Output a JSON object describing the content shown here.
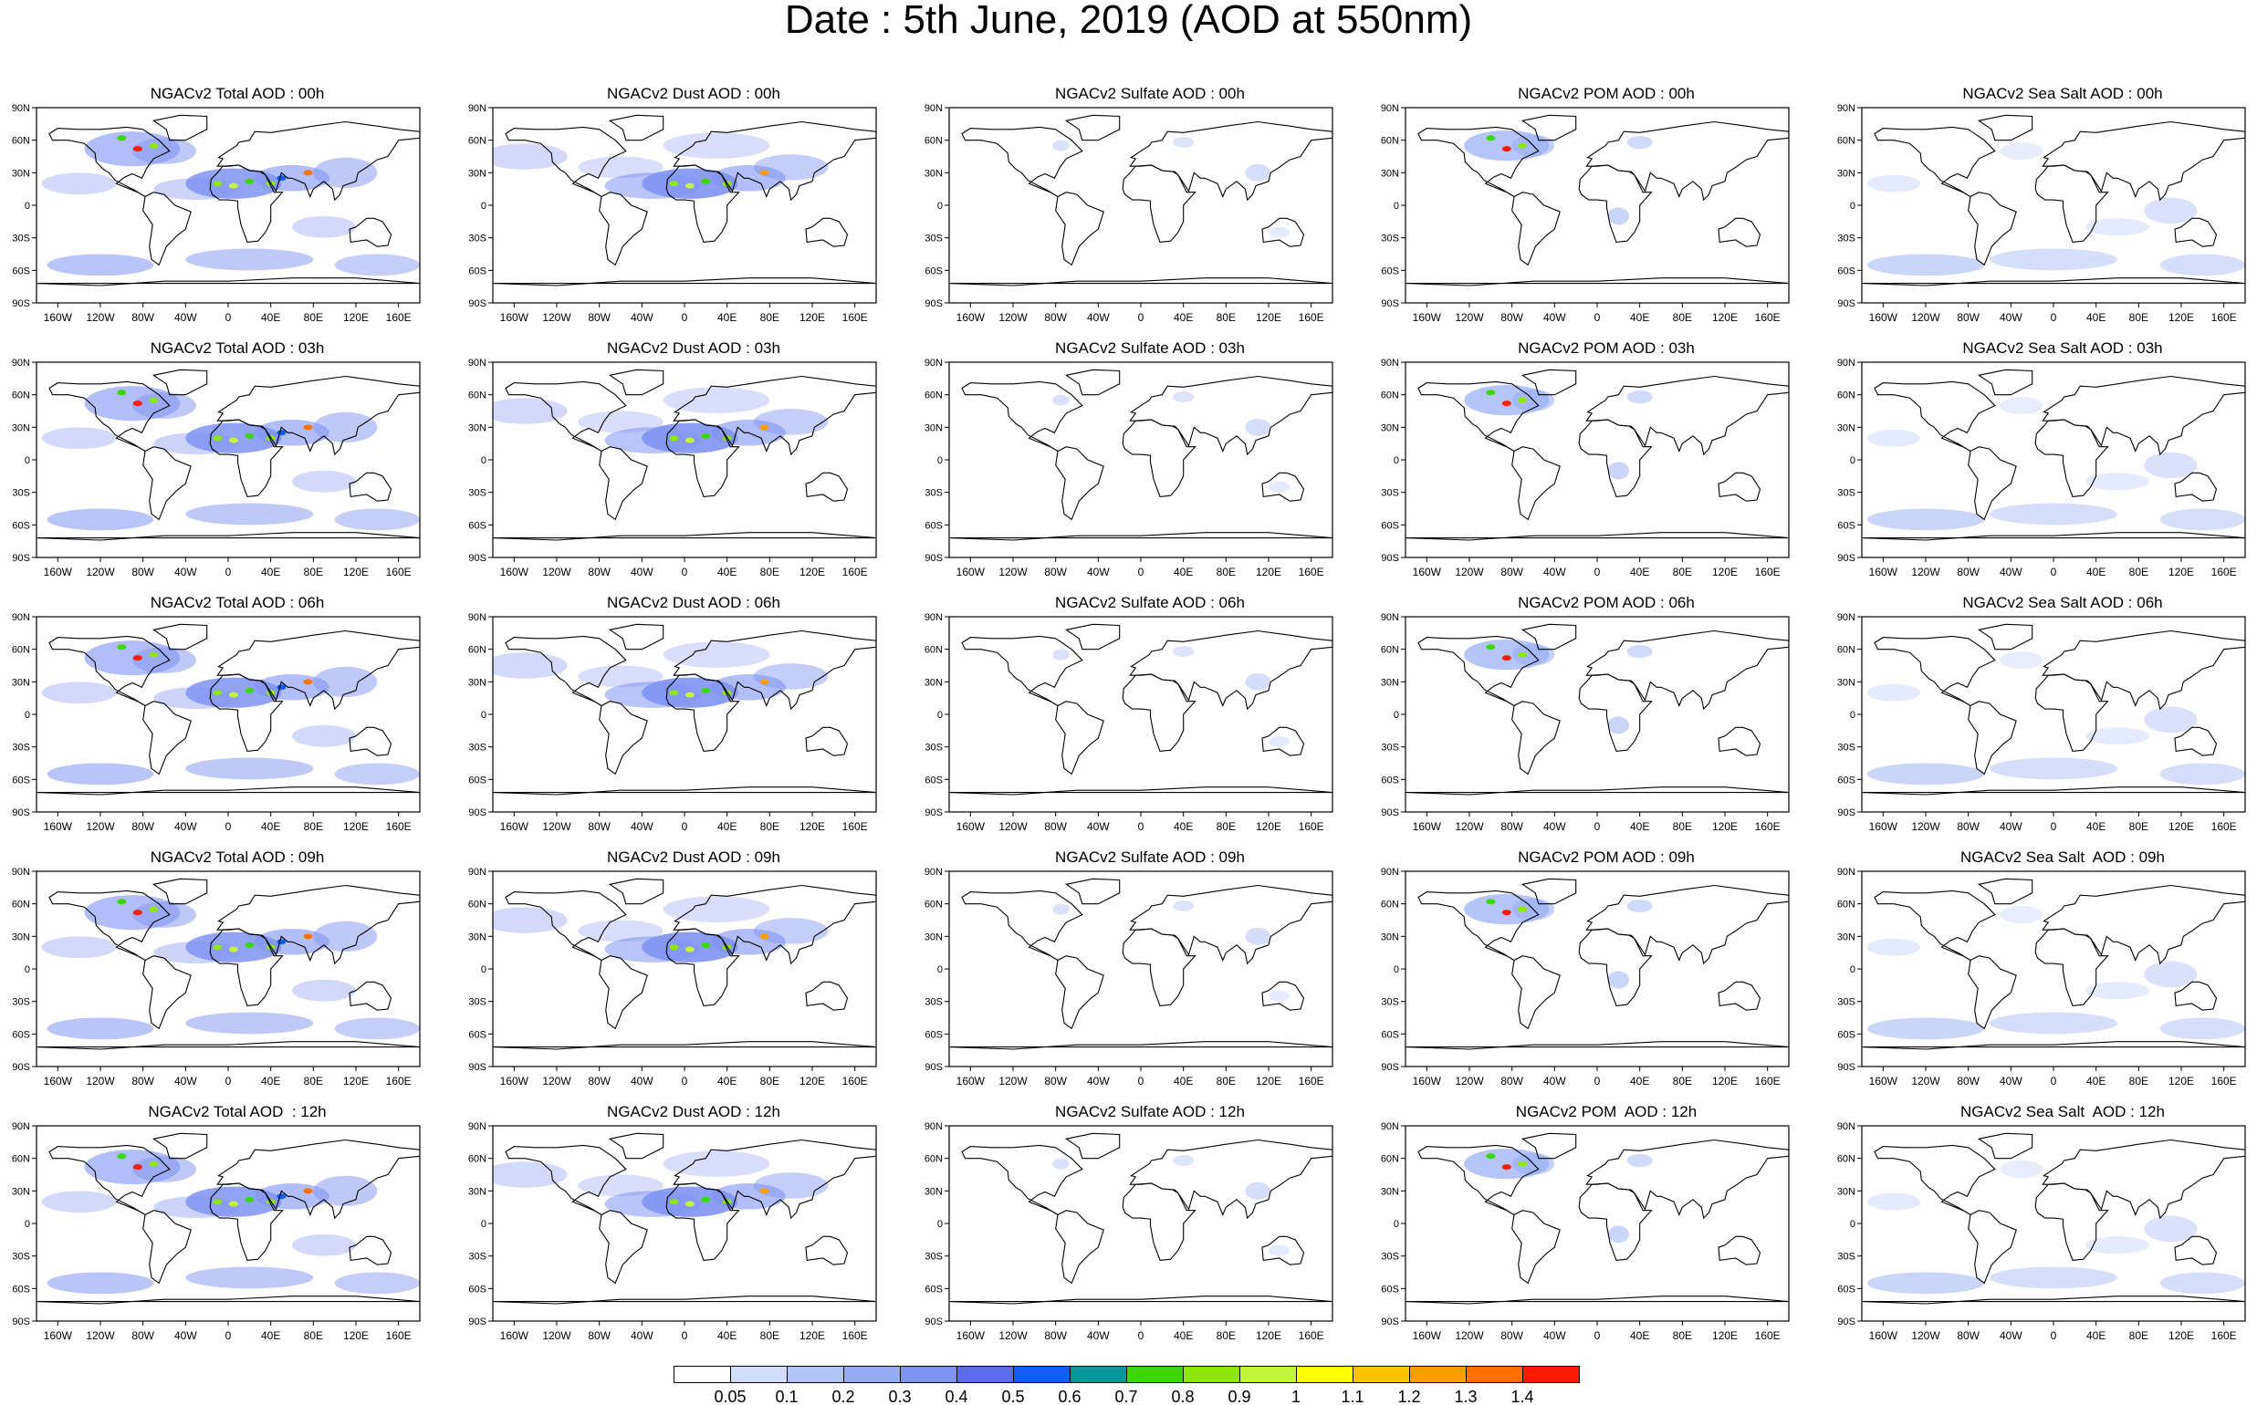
{
  "title": "Date : 5th June, 2019 (AOD at 550nm)",
  "species": [
    {
      "key": "total",
      "color": "#7f93f2"
    },
    {
      "key": "dust",
      "color": "#7f93f2"
    },
    {
      "key": "sulfate",
      "color": "#b3c5f6"
    },
    {
      "key": "pom",
      "color": "#96acf5"
    },
    {
      "key": "seasalt",
      "color": "#b3c5f6"
    }
  ],
  "panels": [
    [
      "NGACv2 Total AOD : 00h",
      "NGACv2 Dust AOD : 00h",
      "NGACv2 Sulfate AOD : 00h",
      "NGACv2 POM AOD : 00h",
      "NGACv2 Sea Salt AOD : 00h"
    ],
    [
      "NGACv2 Total AOD : 03h",
      "NGACv2 Dust AOD : 03h",
      "NGACv2 Sulfate AOD : 03h",
      "NGACv2 POM AOD : 03h",
      "NGACv2 Sea Salt AOD : 03h"
    ],
    [
      "NGACv2 Total AOD : 06h",
      "NGACv2 Dust AOD : 06h",
      "NGACv2 Sulfate AOD : 06h",
      "NGACv2 POM AOD : 06h",
      "NGACv2 Sea Salt AOD : 06h"
    ],
    [
      "NGACv2 Total AOD : 09h",
      "NGACv2 Dust AOD : 09h",
      "NGACv2 Sulfate AOD : 09h",
      "NGACv2 POM AOD : 09h",
      "NGACv2 Sea Salt  AOD : 09h"
    ],
    [
      "NGACv2 Total AOD  : 12h",
      "NGACv2 Dust AOD : 12h",
      "NGACv2 Sulfate AOD : 12h",
      "NGACv2 POM  AOD : 12h",
      "NGACv2 Sea Salt  AOD : 12h"
    ]
  ],
  "lat_labels": [
    "90N",
    "60N",
    "30N",
    "0",
    "30S",
    "60S",
    "90S"
  ],
  "lon_labels": [
    "160W",
    "120W",
    "80W",
    "40W",
    "0",
    "40E",
    "80E",
    "120E",
    "160E"
  ],
  "lon_values": [
    -160,
    -120,
    -80,
    -40,
    0,
    40,
    80,
    120,
    160
  ],
  "colorbar": {
    "labels": [
      "0.05",
      "0.1",
      "0.2",
      "0.3",
      "0.4",
      "0.5",
      "0.6",
      "0.7",
      "0.8",
      "0.9",
      "1",
      "1.1",
      "1.2",
      "1.3",
      "1.4"
    ],
    "colors": [
      "#ffffff",
      "#d2ddfa",
      "#b3c5f6",
      "#96acf5",
      "#7f93f2",
      "#5d6cee",
      "#0a5ff5",
      "#03969a",
      "#3ad806",
      "#8de60c",
      "#c2f53b",
      "#ffff00",
      "#fdc300",
      "#ff9c00",
      "#ff7000",
      "#ff1b00"
    ]
  }
}
